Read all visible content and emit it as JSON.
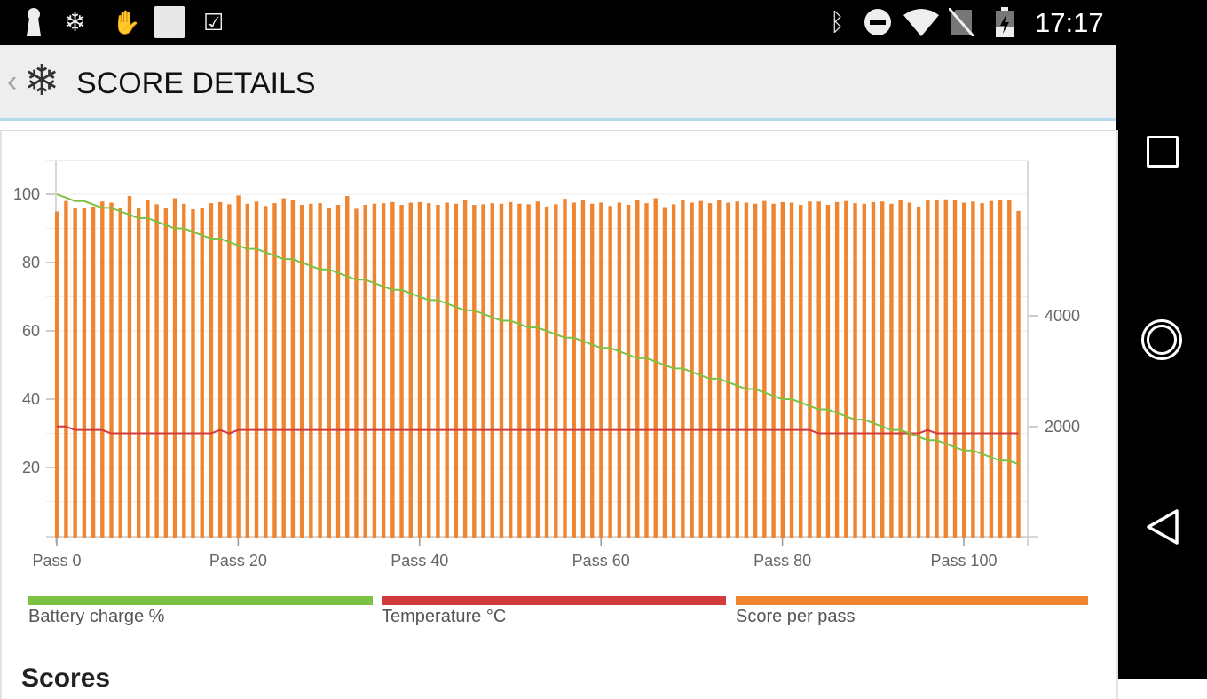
{
  "status_bar": {
    "time": "17:17",
    "left_icons": [
      "keyhole-icon",
      "snowflake-icon",
      "clap-hands-icon",
      "blank-square-icon",
      "check-flag-icon"
    ],
    "right_icons": [
      "bluetooth-icon",
      "do-not-disturb-icon",
      "wifi-icon",
      "no-sim-icon",
      "battery-charging-icon"
    ]
  },
  "app_bar": {
    "title": "SCORE DETAILS",
    "back_icon": "chevron-left-icon",
    "logo_icon": "snowflake-icon"
  },
  "colors": {
    "battery": "#7cc142",
    "temperature": "#d23b3b",
    "score": "#ef8530"
  },
  "chart_data": {
    "type": "bar",
    "x_tick_labels": [
      "Pass 0",
      "Pass 20",
      "Pass 40",
      "Pass 60",
      "Pass 80",
      "Pass 100"
    ],
    "x_ticks": [
      0,
      20,
      40,
      60,
      80,
      100
    ],
    "xlim": [
      0,
      106
    ],
    "left_axis": {
      "ticks": [
        20,
        40,
        60,
        80,
        100
      ],
      "ylim": [
        0,
        110
      ]
    },
    "right_axis": {
      "ticks": [
        2000,
        4000
      ],
      "ylim": [
        0,
        6800
      ]
    },
    "grid": true,
    "legend_placement": "bottom",
    "series": [
      {
        "name": "Battery charge %",
        "type": "line",
        "axis": "left",
        "values": [
          100,
          99,
          98,
          98,
          97,
          96,
          96,
          95,
          94,
          93,
          93,
          92,
          91,
          90,
          90,
          89,
          88,
          87,
          87,
          86,
          85,
          84,
          84,
          83,
          82,
          81,
          81,
          80,
          79,
          78,
          78,
          77,
          76,
          75,
          75,
          74,
          73,
          72,
          72,
          71,
          70,
          69,
          69,
          68,
          67,
          66,
          66,
          65,
          64,
          63,
          63,
          62,
          61,
          61,
          60,
          59,
          58,
          58,
          57,
          56,
          55,
          55,
          54,
          53,
          52,
          52,
          51,
          50,
          49,
          49,
          48,
          47,
          46,
          46,
          45,
          44,
          43,
          43,
          42,
          41,
          40,
          40,
          39,
          38,
          37,
          37,
          36,
          35,
          34,
          34,
          33,
          32,
          31,
          31,
          30,
          29,
          28,
          28,
          27,
          26,
          25,
          25,
          24,
          23,
          22,
          22,
          21
        ]
      },
      {
        "name": "Temperature °C",
        "type": "line",
        "axis": "left",
        "values": [
          32,
          32,
          31,
          31,
          31,
          31,
          30,
          30,
          30,
          30,
          30,
          30,
          30,
          30,
          30,
          30,
          30,
          30,
          31,
          30,
          31,
          31,
          31,
          31,
          31,
          31,
          31,
          31,
          31,
          31,
          31,
          31,
          31,
          31,
          31,
          31,
          31,
          31,
          31,
          31,
          31,
          31,
          31,
          31,
          31,
          31,
          31,
          31,
          31,
          31,
          31,
          31,
          31,
          31,
          31,
          31,
          31,
          31,
          31,
          31,
          31,
          31,
          31,
          31,
          31,
          31,
          31,
          31,
          31,
          31,
          31,
          31,
          31,
          31,
          31,
          31,
          31,
          31,
          31,
          31,
          31,
          31,
          31,
          31,
          30,
          30,
          30,
          30,
          30,
          30,
          30,
          30,
          30,
          30,
          30,
          30,
          31,
          30,
          30,
          30,
          30,
          30,
          30,
          30,
          30,
          30,
          30
        ]
      },
      {
        "name": "Score per pass",
        "type": "bar",
        "axis": "right",
        "values": [
          5880,
          6070,
          5950,
          5950,
          5970,
          6060,
          6040,
          5950,
          6160,
          5950,
          6080,
          6010,
          5950,
          6120,
          6020,
          5920,
          5950,
          6030,
          6050,
          6010,
          6170,
          6020,
          6060,
          5980,
          6030,
          6120,
          6080,
          6000,
          6020,
          6030,
          5950,
          6000,
          6160,
          5930,
          6000,
          6020,
          6030,
          6050,
          6000,
          6040,
          6050,
          6030,
          6000,
          6040,
          6020,
          6080,
          6000,
          6010,
          6030,
          6020,
          6050,
          6020,
          6010,
          6060,
          5970,
          6010,
          6110,
          6040,
          6080,
          6020,
          6040,
          5980,
          6040,
          6000,
          6090,
          6030,
          6120,
          5960,
          6010,
          6080,
          6040,
          6070,
          6030,
          6080,
          6040,
          6060,
          6040,
          6020,
          6070,
          6020,
          6050,
          6040,
          6000,
          6060,
          6060,
          6000,
          6050,
          6070,
          6030,
          6020,
          6050,
          6060,
          6020,
          6080,
          6040,
          5970,
          6090,
          6090,
          6100,
          6080,
          6040,
          6060,
          6030,
          6070,
          6090,
          6080,
          5890
        ]
      }
    ]
  },
  "legend": [
    {
      "label": "Battery charge %"
    },
    {
      "label": "Temperature °C"
    },
    {
      "label": "Score per pass"
    }
  ],
  "section_heading": "Scores"
}
